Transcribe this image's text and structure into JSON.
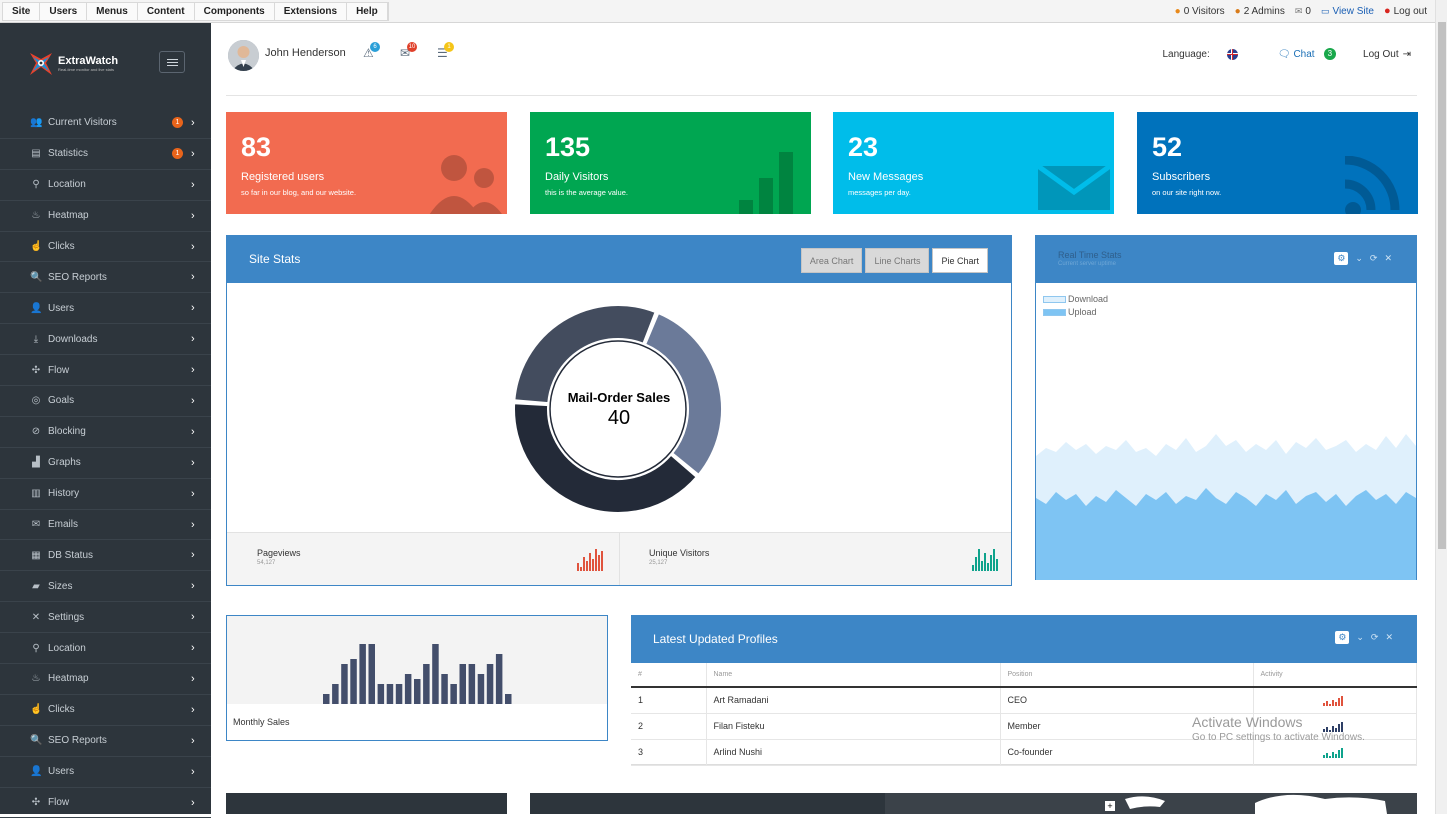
{
  "adminbar": {
    "menu": [
      "Site",
      "Users",
      "Menus",
      "Content",
      "Components",
      "Extensions",
      "Help"
    ],
    "visitors": "0 Visitors",
    "admins": "2 Admins",
    "messages": "0",
    "view_site": "View Site",
    "logout": "Log out"
  },
  "sidebar": {
    "logo": {
      "name": "ExtraWatch",
      "tagline": "Real-time monitor and live stats"
    },
    "items": [
      {
        "label": "Current Visitors",
        "icon": "group-icon",
        "glyph": "👥",
        "badge": "1"
      },
      {
        "label": "Statistics",
        "icon": "statistics-icon",
        "glyph": "▤",
        "badge": "1"
      },
      {
        "label": "Location",
        "icon": "map-pin-icon",
        "glyph": "⚲"
      },
      {
        "label": "Heatmap",
        "icon": "fire-icon",
        "glyph": "♨"
      },
      {
        "label": "Clicks",
        "icon": "hand-pointer-icon",
        "glyph": "☝"
      },
      {
        "label": "SEO Reports",
        "icon": "search-icon",
        "glyph": "🔍"
      },
      {
        "label": "Users",
        "icon": "user-icon",
        "glyph": "👤"
      },
      {
        "label": "Downloads",
        "icon": "download-icon",
        "glyph": "⤓"
      },
      {
        "label": "Flow",
        "icon": "flow-icon",
        "glyph": "✣"
      },
      {
        "label": "Goals",
        "icon": "goal-icon",
        "glyph": "◎"
      },
      {
        "label": "Blocking",
        "icon": "block-icon",
        "glyph": "⊘"
      },
      {
        "label": "Graphs",
        "icon": "bar-chart-icon",
        "glyph": "▟"
      },
      {
        "label": "History",
        "icon": "history-icon",
        "glyph": "▥"
      },
      {
        "label": "Emails",
        "icon": "envelope-icon",
        "glyph": "✉"
      },
      {
        "label": "DB Status",
        "icon": "database-icon",
        "glyph": "▦"
      },
      {
        "label": "Sizes",
        "icon": "folder-icon",
        "glyph": "▰"
      },
      {
        "label": "Settings",
        "icon": "wrench-icon",
        "glyph": "✕"
      },
      {
        "label": "Location",
        "icon": "map-pin-icon",
        "glyph": "⚲"
      },
      {
        "label": "Heatmap",
        "icon": "fire-icon",
        "glyph": "♨"
      },
      {
        "label": "Clicks",
        "icon": "hand-pointer-icon",
        "glyph": "☝"
      },
      {
        "label": "SEO Reports",
        "icon": "search-icon",
        "glyph": "🔍"
      },
      {
        "label": "Users",
        "icon": "user-icon",
        "glyph": "👤"
      },
      {
        "label": "Flow",
        "icon": "flow-icon",
        "glyph": "✣"
      }
    ]
  },
  "header": {
    "user": "John Henderson",
    "notif_badges": [
      "6",
      "10",
      "1"
    ],
    "language_label": "Language:",
    "chat_label": "Chat",
    "chat_count": "3",
    "logout": "Log Out"
  },
  "tiles": [
    {
      "value": "83",
      "label": "Registered users",
      "sub": "so far in our blog, and our website.",
      "color": "#f26b50"
    },
    {
      "value": "135",
      "label": "Daily Visitors",
      "sub": "this is the average value.",
      "color": "#00a651"
    },
    {
      "value": "23",
      "label": "New Messages",
      "sub": "messages per day.",
      "color": "#00bdea"
    },
    {
      "value": "52",
      "label": "Subscribers",
      "sub": "on our site right now.",
      "color": "#0072bc"
    }
  ],
  "site_stats": {
    "title": "Site Stats",
    "tabs": [
      "Area Chart",
      "Line Charts",
      "Pie Chart"
    ],
    "active_tab": "Pie Chart",
    "donut_label": "Mail-Order Sales",
    "donut_value": "40",
    "footer": [
      {
        "label": "Pageviews",
        "value": "54,127",
        "color": "#e0533d"
      },
      {
        "label": "Unique Visitors",
        "value": "25,127",
        "color": "#0fa38c"
      }
    ]
  },
  "chart_data": {
    "type": "pie",
    "segments": [
      {
        "value": 40,
        "color": "#232a38"
      },
      {
        "value": 30,
        "color": "#6b7a99"
      },
      {
        "value": 30,
        "color": "#434c5e"
      }
    ],
    "label": "Mail-Order Sales",
    "center_value": 40
  },
  "realtime": {
    "title": "Real Time Stats",
    "subtitle": "Current server uptime",
    "legend": [
      {
        "label": "Download",
        "color": "#dff0fc"
      },
      {
        "label": "Upload",
        "color": "#7ec4f3"
      }
    ]
  },
  "monthly_sales": {
    "label": "Monthly Sales",
    "bars": [
      2,
      4,
      8,
      9,
      12,
      12,
      4,
      4,
      4,
      6,
      5,
      8,
      12,
      6,
      4,
      8,
      8,
      6,
      8,
      10,
      2
    ]
  },
  "profiles": {
    "title": "Latest Updated Profiles",
    "columns": [
      "#",
      "Name",
      "Position",
      "Activity"
    ],
    "rows": [
      {
        "num": "1",
        "name": "Art Ramadani",
        "position": "CEO",
        "color": "#e0533d"
      },
      {
        "num": "2",
        "name": "Filan Fisteku",
        "position": "Member",
        "color": "#2e3f66"
      },
      {
        "num": "3",
        "name": "Arlind Nushi",
        "position": "Co-founder",
        "color": "#0fa38c"
      }
    ]
  },
  "watermark": {
    "line1": "Activate Windows",
    "line2": "Go to PC settings to activate Windows."
  }
}
